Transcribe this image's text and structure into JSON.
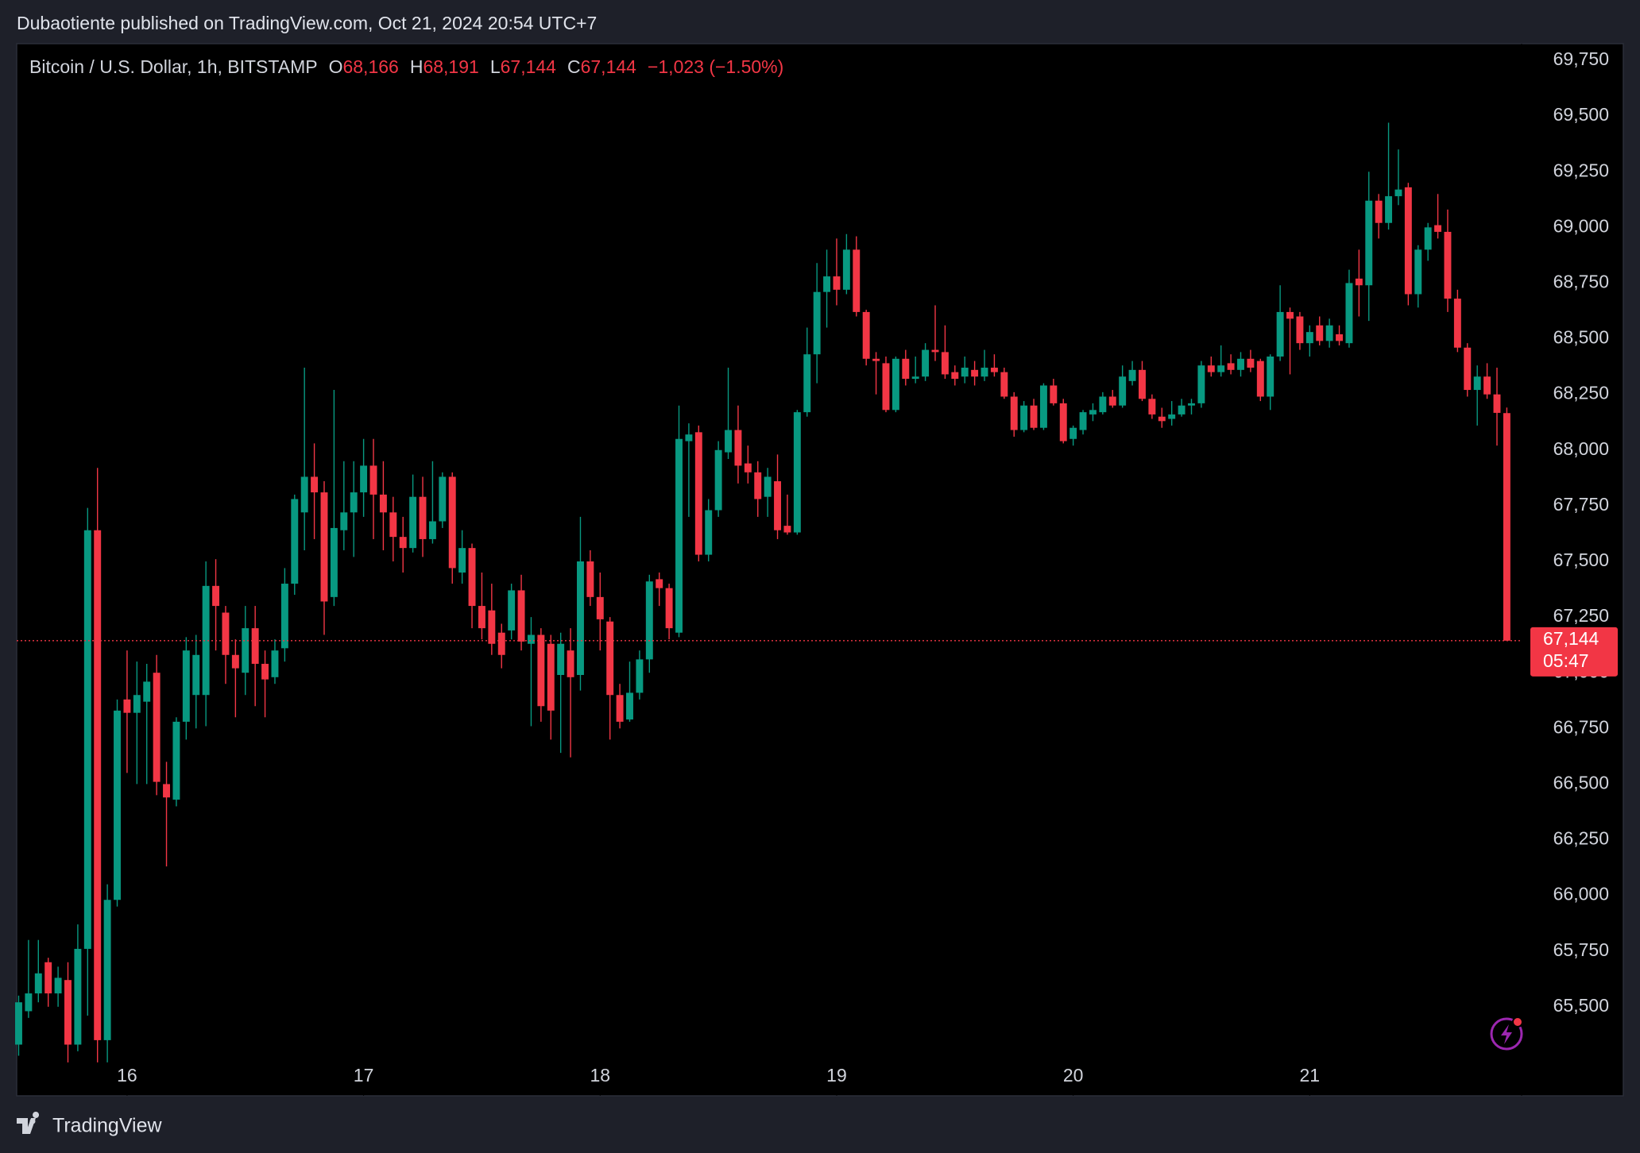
{
  "header": {
    "text": "Dubaotiente published on TradingView.com, Oct 21, 2024 20:54 UTC+7"
  },
  "chart_data": {
    "type": "candlestick",
    "legend": {
      "symbol": "Bitcoin / U.S. Dollar, 1h, BITSTAMP",
      "fields": [
        {
          "key": "O",
          "value": "68,166"
        },
        {
          "key": "H",
          "value": "68,191"
        },
        {
          "key": "L",
          "value": "67,144"
        },
        {
          "key": "C",
          "value": "67,144"
        }
      ],
      "change": "−1,023 (−1.50%)"
    },
    "up_color": "#089981",
    "down_color": "#f23645",
    "ohlc": [
      [
        65330,
        65550,
        65280,
        65520
      ],
      [
        65480,
        65800,
        65450,
        65560
      ],
      [
        65560,
        65800,
        65520,
        65650
      ],
      [
        65700,
        65720,
        65500,
        65560
      ],
      [
        65560,
        65680,
        65500,
        65630
      ],
      [
        65620,
        65700,
        65250,
        65330
      ],
      [
        65330,
        65870,
        65300,
        65760
      ],
      [
        65760,
        67740,
        65460,
        67640
      ],
      [
        67640,
        67920,
        65250,
        65350
      ],
      [
        65350,
        66050,
        65250,
        65980
      ],
      [
        65980,
        66880,
        65950,
        66830
      ],
      [
        66880,
        67100,
        66550,
        66820
      ],
      [
        66820,
        67050,
        66500,
        66900
      ],
      [
        66870,
        67040,
        66500,
        66960
      ],
      [
        67000,
        67080,
        66450,
        66510
      ],
      [
        66500,
        66600,
        66130,
        66440
      ],
      [
        66430,
        66800,
        66400,
        66780
      ],
      [
        66780,
        67160,
        66700,
        67100
      ],
      [
        66900,
        67170,
        66750,
        67080
      ],
      [
        66900,
        67500,
        66760,
        67390
      ],
      [
        67390,
        67510,
        67100,
        67300
      ],
      [
        67270,
        67300,
        66950,
        67080
      ],
      [
        67080,
        67150,
        66800,
        67020
      ],
      [
        67000,
        67300,
        66900,
        67200
      ],
      [
        67200,
        67300,
        66850,
        67040
      ],
      [
        67040,
        67100,
        66800,
        66970
      ],
      [
        66980,
        67150,
        66950,
        67100
      ],
      [
        67110,
        67470,
        67050,
        67400
      ],
      [
        67400,
        67800,
        67350,
        67780
      ],
      [
        67720,
        68370,
        67550,
        67880
      ],
      [
        67880,
        68030,
        67600,
        67810
      ],
      [
        67810,
        67860,
        67170,
        67320
      ],
      [
        67340,
        68270,
        67300,
        67650
      ],
      [
        67640,
        67950,
        67550,
        67720
      ],
      [
        67720,
        67950,
        67520,
        67810
      ],
      [
        67810,
        68050,
        67700,
        67930
      ],
      [
        67930,
        68050,
        67600,
        67800
      ],
      [
        67800,
        67950,
        67550,
        67720
      ],
      [
        67720,
        67790,
        67500,
        67610
      ],
      [
        67610,
        67700,
        67450,
        67560
      ],
      [
        67560,
        67890,
        67540,
        67790
      ],
      [
        67790,
        67880,
        67520,
        67600
      ],
      [
        67600,
        67950,
        67580,
        67680
      ],
      [
        67680,
        67900,
        67650,
        67880
      ],
      [
        67880,
        67900,
        67400,
        67470
      ],
      [
        67450,
        67640,
        67400,
        67560
      ],
      [
        67560,
        67580,
        67200,
        67300
      ],
      [
        67300,
        67450,
        67150,
        67200
      ],
      [
        67280,
        67400,
        67080,
        67130
      ],
      [
        67180,
        67220,
        67020,
        67080
      ],
      [
        67190,
        67400,
        67150,
        67370
      ],
      [
        67370,
        67440,
        67100,
        67140
      ],
      [
        67130,
        67250,
        66760,
        67170
      ],
      [
        67170,
        67200,
        66780,
        66850
      ],
      [
        67130,
        67170,
        66700,
        66830
      ],
      [
        66990,
        67180,
        66640,
        67130
      ],
      [
        67100,
        67200,
        66620,
        66980
      ],
      [
        66990,
        67700,
        66920,
        67500
      ],
      [
        67500,
        67550,
        67300,
        67340
      ],
      [
        67340,
        67450,
        67100,
        67240
      ],
      [
        67230,
        67250,
        66700,
        66900
      ],
      [
        66900,
        66950,
        66750,
        66780
      ],
      [
        66790,
        67050,
        66780,
        66910
      ],
      [
        66910,
        67100,
        66880,
        67060
      ],
      [
        67060,
        67440,
        67000,
        67410
      ],
      [
        67420,
        67450,
        67300,
        67380
      ],
      [
        67380,
        67400,
        67150,
        67200
      ],
      [
        67180,
        68200,
        67160,
        68050
      ],
      [
        68040,
        68120,
        67700,
        68070
      ],
      [
        68080,
        68110,
        67500,
        67530
      ],
      [
        67530,
        67780,
        67500,
        67730
      ],
      [
        67730,
        68040,
        67700,
        68000
      ],
      [
        67990,
        68370,
        67960,
        68090
      ],
      [
        68090,
        68200,
        67850,
        67930
      ],
      [
        67940,
        68020,
        67850,
        67900
      ],
      [
        67900,
        67950,
        67700,
        67780
      ],
      [
        67790,
        67920,
        67700,
        67880
      ],
      [
        67860,
        67980,
        67600,
        67640
      ],
      [
        67660,
        67800,
        67620,
        67630
      ],
      [
        67630,
        68180,
        67620,
        68170
      ],
      [
        68170,
        68550,
        68150,
        68430
      ],
      [
        68430,
        68840,
        68300,
        68710
      ],
      [
        68710,
        68900,
        68550,
        68780
      ],
      [
        68780,
        68950,
        68650,
        68720
      ],
      [
        68720,
        68970,
        68700,
        68900
      ],
      [
        68900,
        68960,
        68600,
        68620
      ],
      [
        68620,
        68630,
        68380,
        68410
      ],
      [
        68410,
        68440,
        68250,
        68400
      ],
      [
        68390,
        68420,
        68170,
        68180
      ],
      [
        68180,
        68420,
        68170,
        68410
      ],
      [
        68410,
        68450,
        68290,
        68320
      ],
      [
        68320,
        68420,
        68300,
        68330
      ],
      [
        68330,
        68480,
        68310,
        68450
      ],
      [
        68450,
        68650,
        68400,
        68440
      ],
      [
        68440,
        68560,
        68320,
        68340
      ],
      [
        68350,
        68380,
        68290,
        68320
      ],
      [
        68330,
        68420,
        68300,
        68370
      ],
      [
        68360,
        68400,
        68290,
        68330
      ],
      [
        68330,
        68450,
        68310,
        68370
      ],
      [
        68370,
        68430,
        68330,
        68350
      ],
      [
        68350,
        68370,
        68230,
        68240
      ],
      [
        68240,
        68260,
        68060,
        68090
      ],
      [
        68090,
        68220,
        68080,
        68200
      ],
      [
        68200,
        68230,
        68090,
        68100
      ],
      [
        68100,
        68300,
        68090,
        68290
      ],
      [
        68290,
        68320,
        68200,
        68210
      ],
      [
        68210,
        68230,
        68030,
        68040
      ],
      [
        68050,
        68110,
        68020,
        68100
      ],
      [
        68090,
        68180,
        68070,
        68170
      ],
      [
        68160,
        68210,
        68130,
        68180
      ],
      [
        68170,
        68260,
        68160,
        68240
      ],
      [
        68240,
        68270,
        68190,
        68200
      ],
      [
        68200,
        68380,
        68190,
        68330
      ],
      [
        68310,
        68400,
        68290,
        68360
      ],
      [
        68360,
        68400,
        68220,
        68230
      ],
      [
        68230,
        68250,
        68140,
        68160
      ],
      [
        68150,
        68190,
        68100,
        68130
      ],
      [
        68140,
        68220,
        68110,
        68160
      ],
      [
        68160,
        68230,
        68150,
        68200
      ],
      [
        68200,
        68230,
        68160,
        68210
      ],
      [
        68210,
        68400,
        68190,
        68380
      ],
      [
        68380,
        68420,
        68330,
        68350
      ],
      [
        68350,
        68470,
        68330,
        68380
      ],
      [
        68390,
        68430,
        68340,
        68360
      ],
      [
        68360,
        68440,
        68330,
        68410
      ],
      [
        68410,
        68450,
        68350,
        68370
      ],
      [
        68400,
        68410,
        68220,
        68240
      ],
      [
        68240,
        68430,
        68180,
        68420
      ],
      [
        68420,
        68740,
        68400,
        68620
      ],
      [
        68620,
        68640,
        68340,
        68590
      ],
      [
        68600,
        68620,
        68450,
        68480
      ],
      [
        68480,
        68560,
        68420,
        68530
      ],
      [
        68560,
        68600,
        68470,
        68490
      ],
      [
        68490,
        68590,
        68460,
        68560
      ],
      [
        68520,
        68560,
        68470,
        68490
      ],
      [
        68480,
        68810,
        68460,
        68750
      ],
      [
        68770,
        68900,
        68600,
        68740
      ],
      [
        68740,
        69250,
        68580,
        69120
      ],
      [
        69120,
        69150,
        68950,
        69020
      ],
      [
        69020,
        69470,
        68990,
        69140
      ],
      [
        69140,
        69350,
        69100,
        69170
      ],
      [
        69180,
        69200,
        68650,
        68700
      ],
      [
        68700,
        68920,
        68640,
        68900
      ],
      [
        68900,
        69020,
        68850,
        69000
      ],
      [
        69010,
        69150,
        68950,
        68980
      ],
      [
        68980,
        69080,
        68620,
        68680
      ],
      [
        68680,
        68720,
        68440,
        68460
      ],
      [
        68460,
        68480,
        68240,
        68270
      ],
      [
        68270,
        68380,
        68110,
        68330
      ],
      [
        68330,
        68390,
        68230,
        68250
      ],
      [
        68250,
        68370,
        68020,
        68167
      ],
      [
        68166,
        68191,
        67144,
        67144
      ]
    ],
    "xlim": [
      -0.2,
      152.5
    ],
    "ylim": [
      65100,
      69825
    ],
    "yticks": [
      {
        "value": 65500,
        "label": "65,500"
      },
      {
        "value": 65750,
        "label": "65,750"
      },
      {
        "value": 66000,
        "label": "66,000"
      },
      {
        "value": 66250,
        "label": "66,250"
      },
      {
        "value": 66500,
        "label": "66,500"
      },
      {
        "value": 66750,
        "label": "66,750"
      },
      {
        "value": 67000,
        "label": "67,000"
      },
      {
        "value": 67250,
        "label": "67,250"
      },
      {
        "value": 67500,
        "label": "67,500"
      },
      {
        "value": 67750,
        "label": "67,750"
      },
      {
        "value": 68000,
        "label": "68,000"
      },
      {
        "value": 68250,
        "label": "68,250"
      },
      {
        "value": 68500,
        "label": "68,500"
      },
      {
        "value": 68750,
        "label": "68,750"
      },
      {
        "value": 69000,
        "label": "69,000"
      },
      {
        "value": 69250,
        "label": "69,250"
      },
      {
        "value": 69500,
        "label": "69,500"
      },
      {
        "value": 69750,
        "label": "69,750"
      }
    ],
    "xticks": [
      {
        "value": 11,
        "label": "16"
      },
      {
        "value": 35,
        "label": "17"
      },
      {
        "value": 59,
        "label": "18"
      },
      {
        "value": 83,
        "label": "19"
      },
      {
        "value": 107,
        "label": "20"
      },
      {
        "value": 131,
        "label": "21"
      }
    ],
    "last_price": {
      "label": "67,144",
      "countdown": "05:47"
    }
  },
  "footer": {
    "brand": "TradingView"
  }
}
